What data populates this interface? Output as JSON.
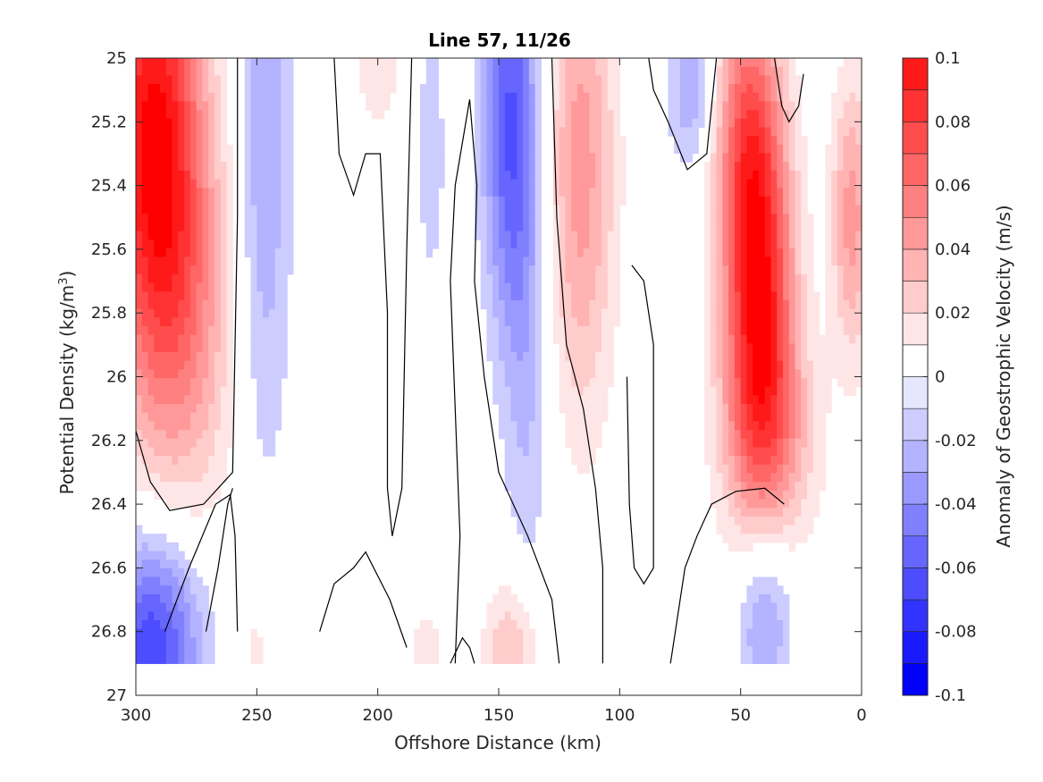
{
  "chart_data": {
    "type": "heatmap",
    "title": "Line 57, 11/26",
    "xlabel": "Offshore Distance (km)",
    "ylabel_main": "Potential Density (kg/m",
    "ylabel_sup": "3",
    "ylabel_close": ")",
    "colorbar_label": "Anomaly of Geostrophic Velocity (m/s)",
    "xlim": [
      300,
      0
    ],
    "ylim": [
      25,
      27
    ],
    "x_ticks": [
      300,
      250,
      200,
      150,
      100,
      50,
      0
    ],
    "x_tick_labels": [
      "300",
      "250",
      "200",
      "150",
      "100",
      "50",
      "0"
    ],
    "y_ticks": [
      25,
      25.2,
      25.4,
      25.6,
      25.8,
      26,
      26.2,
      26.4,
      26.6,
      26.8,
      27
    ],
    "y_tick_labels": [
      "25",
      "25.2",
      "25.4",
      "25.6",
      "25.8",
      "26",
      "26.2",
      "26.4",
      "26.6",
      "26.8",
      "27"
    ],
    "colorbar_limits": [
      -0.1,
      0.1
    ],
    "colorbar_ticks": [
      0.1,
      0.08,
      0.06,
      0.04,
      0.02,
      0,
      -0.02,
      -0.04,
      -0.06,
      -0.08,
      -0.1
    ],
    "colorbar_tick_labels": [
      "0.1",
      "0.08",
      "0.06",
      "0.04",
      "0.02",
      "0",
      "-0.02",
      "-0.04",
      "-0.06",
      "-0.08",
      "-0.1"
    ],
    "levels": [
      -0.1,
      -0.09,
      -0.08,
      -0.07,
      -0.06,
      -0.05,
      -0.04,
      -0.03,
      -0.02,
      -0.01,
      0,
      0.01,
      0.02,
      0.03,
      0.04,
      0.05,
      0.06,
      0.07,
      0.08,
      0.09,
      0.1
    ],
    "level_colors": [
      "#0000ff",
      "#1a1aff",
      "#3333ff",
      "#4d4dff",
      "#6666ff",
      "#8080ff",
      "#9999ff",
      "#b3b3ff",
      "#ccccff",
      "#e6e6ff",
      "#ffffff",
      "#ffffff",
      "#ffe6e6",
      "#ffcccc",
      "#ffb3b3",
      "#ff9999",
      "#ff8080",
      "#ff6666",
      "#ff4d4d",
      "#ff3333",
      "#ff1a1a",
      "#ff0000"
    ],
    "grid": false,
    "data_extent": {
      "density_max": 26.9
    },
    "features": [
      {
        "name": "offshore-surface-jet",
        "sign": "positive",
        "x": 293,
        "y": 25.25,
        "peak": 0.1,
        "sx": 14,
        "sy": 0.55
      },
      {
        "name": "offshore-jet-flank",
        "sign": "positive",
        "x": 278,
        "y": 25.8,
        "peak": 0.035,
        "sx": 14,
        "sy": 0.45
      },
      {
        "name": "deep-offshore-core",
        "sign": "negative",
        "x": 293,
        "y": 26.85,
        "peak": -0.07,
        "sx": 14,
        "sy": 0.25
      },
      {
        "name": "negative-band-250km",
        "sign": "negative",
        "x": 247,
        "y": 25.3,
        "peak": -0.03,
        "sx": 8,
        "sy": 0.7
      },
      {
        "name": "positive-patch-200km",
        "sign": "positive",
        "x": 200,
        "y": 25.05,
        "peak": 0.02,
        "sx": 6,
        "sy": 0.12
      },
      {
        "name": "negative-band-178km",
        "sign": "negative",
        "x": 178,
        "y": 25.3,
        "peak": -0.015,
        "sx": 5,
        "sy": 0.35
      },
      {
        "name": "negative-core-145km",
        "sign": "negative",
        "x": 145,
        "y": 25.2,
        "peak": -0.06,
        "sx": 8,
        "sy": 0.45
      },
      {
        "name": "negative-tail-140km",
        "sign": "negative",
        "x": 138,
        "y": 26.0,
        "peak": -0.02,
        "sx": 7,
        "sy": 0.5
      },
      {
        "name": "positive-band-115km",
        "sign": "positive",
        "x": 116,
        "y": 25.35,
        "peak": 0.045,
        "sx": 10,
        "sy": 0.55
      },
      {
        "name": "negative-patch-70km",
        "sign": "negative",
        "x": 70,
        "y": 25.1,
        "peak": -0.03,
        "sx": 7,
        "sy": 0.18
      },
      {
        "name": "positive-jet-core-43km",
        "sign": "positive",
        "x": 42,
        "y": 25.8,
        "peak": 0.085,
        "sx": 10,
        "sy": 0.4
      },
      {
        "name": "positive-jet-surface-48km",
        "sign": "positive",
        "x": 47,
        "y": 25.25,
        "peak": 0.06,
        "sx": 10,
        "sy": 0.35
      },
      {
        "name": "positive-jet-lower-40km",
        "sign": "positive",
        "x": 38,
        "y": 26.2,
        "peak": 0.035,
        "sx": 14,
        "sy": 0.25
      },
      {
        "name": "positive-nearshore-5km",
        "sign": "positive",
        "x": 4,
        "y": 25.5,
        "peak": 0.045,
        "sx": 6,
        "sy": 0.3
      },
      {
        "name": "negative-deep-40km",
        "sign": "negative",
        "x": 40,
        "y": 26.75,
        "peak": -0.035,
        "sx": 8,
        "sy": 0.22
      },
      {
        "name": "positive-deep-145km",
        "sign": "positive",
        "x": 145,
        "y": 26.85,
        "peak": 0.03,
        "sx": 8,
        "sy": 0.15
      },
      {
        "name": "positive-deep-180km",
        "sign": "positive",
        "x": 180,
        "y": 26.88,
        "peak": 0.015,
        "sx": 6,
        "sy": 0.12
      },
      {
        "name": "positive-deep-250km",
        "sign": "positive",
        "x": 250,
        "y": 26.85,
        "peak": 0.015,
        "sx": 4,
        "sy": 0.1
      }
    ],
    "zero_contours": [
      [
        [
          300,
          26.17
        ],
        [
          294,
          26.33
        ],
        [
          286,
          26.42
        ],
        [
          272,
          26.4
        ],
        [
          260,
          26.3
        ],
        [
          258,
          25.5
        ],
        [
          258,
          25.0
        ]
      ],
      [
        [
          258,
          26.8
        ],
        [
          259,
          26.5
        ],
        [
          261,
          26.37
        ],
        [
          267,
          26.4
        ],
        [
          278,
          26.6
        ],
        [
          288,
          26.8
        ]
      ],
      [
        [
          271,
          26.8
        ],
        [
          266,
          26.6
        ],
        [
          262,
          26.4
        ],
        [
          260,
          26.35
        ]
      ],
      [
        [
          224,
          26.8
        ],
        [
          218,
          26.65
        ],
        [
          210,
          26.6
        ],
        [
          205,
          26.55
        ],
        [
          195,
          26.7
        ],
        [
          188,
          26.85
        ]
      ],
      [
        [
          218,
          25.0
        ],
        [
          216,
          25.3
        ],
        [
          210,
          25.43
        ],
        [
          205,
          25.3
        ],
        [
          199,
          25.3
        ],
        [
          196,
          25.8
        ],
        [
          196,
          26.35
        ],
        [
          194,
          26.5
        ],
        [
          190,
          26.35
        ],
        [
          188,
          25.6
        ],
        [
          186,
          25.0
        ]
      ],
      [
        [
          170,
          26.9
        ],
        [
          165,
          26.82
        ],
        [
          162,
          26.85
        ],
        [
          160,
          26.9
        ]
      ],
      [
        [
          168,
          26.9
        ],
        [
          166,
          26.5
        ],
        [
          170,
          25.7
        ],
        [
          168,
          25.4
        ],
        [
          162,
          25.13
        ],
        [
          159,
          25.4
        ],
        [
          160,
          25.7
        ],
        [
          156,
          26.0
        ],
        [
          150,
          26.3
        ],
        [
          138,
          26.5
        ],
        [
          128,
          26.7
        ],
        [
          125,
          26.9
        ]
      ],
      [
        [
          128,
          25.0
        ],
        [
          126,
          25.5
        ],
        [
          122,
          25.9
        ],
        [
          115,
          26.1
        ],
        [
          110,
          26.35
        ],
        [
          107,
          26.6
        ],
        [
          107,
          26.9
        ]
      ],
      [
        [
          95,
          25.65
        ],
        [
          90,
          25.7
        ],
        [
          86,
          25.9
        ],
        [
          86,
          26.3
        ],
        [
          86,
          26.6
        ],
        [
          90,
          26.65
        ],
        [
          94,
          26.6
        ],
        [
          96,
          26.4
        ],
        [
          97,
          26.0
        ]
      ],
      [
        [
          79,
          26.9
        ],
        [
          76,
          26.75
        ],
        [
          73,
          26.6
        ],
        [
          68,
          26.5
        ],
        [
          62,
          26.4
        ],
        [
          52,
          26.36
        ],
        [
          40,
          26.35
        ],
        [
          32,
          26.4
        ]
      ],
      [
        [
          88,
          25.0
        ],
        [
          86,
          25.1
        ],
        [
          80,
          25.2
        ],
        [
          72,
          25.35
        ],
        [
          64,
          25.3
        ],
        [
          60,
          25.0
        ]
      ],
      [
        [
          36,
          25.0
        ],
        [
          33,
          25.15
        ],
        [
          30,
          25.2
        ],
        [
          26,
          25.15
        ],
        [
          24,
          25.05
        ]
      ]
    ]
  }
}
